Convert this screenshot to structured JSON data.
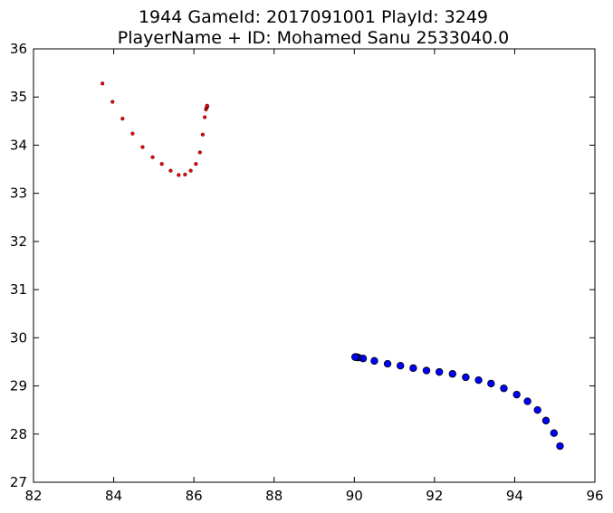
{
  "chart_data": {
    "type": "scatter",
    "title_line1": "1944 GameId: 2017091001 PlayId: 3249",
    "title_line2": "PlayerName + ID: Mohamed Sanu 2533040.0",
    "xlabel": "",
    "ylabel": "",
    "xlim": [
      82,
      96
    ],
    "ylim": [
      27,
      36
    ],
    "xticks": [
      82,
      84,
      86,
      88,
      90,
      92,
      94,
      96
    ],
    "yticks": [
      27,
      28,
      29,
      30,
      31,
      32,
      33,
      34,
      35,
      36
    ],
    "grid": false,
    "series": [
      {
        "color": "#ff0000",
        "marker_size": "small",
        "x": [
          83.72,
          83.97,
          84.22,
          84.47,
          84.72,
          84.97,
          85.2,
          85.42,
          85.62,
          85.78,
          85.92,
          86.05,
          86.15,
          86.22,
          86.27,
          86.3,
          86.32,
          86.33,
          86.33,
          86.33
        ],
        "y": [
          35.28,
          34.9,
          34.55,
          34.24,
          33.96,
          33.75,
          33.61,
          33.47,
          33.38,
          33.39,
          33.47,
          33.61,
          33.85,
          34.22,
          34.58,
          34.74,
          34.78,
          34.8,
          34.81,
          34.82
        ]
      },
      {
        "color": "#0000ff",
        "marker_size": "large",
        "x": [
          95.13,
          94.98,
          94.78,
          94.57,
          94.32,
          94.05,
          93.73,
          93.41,
          93.1,
          92.78,
          92.45,
          92.12,
          91.8,
          91.47,
          91.15,
          90.83,
          90.5,
          90.22,
          90.1,
          90.05,
          90.03,
          90.02
        ],
        "y": [
          27.75,
          28.02,
          28.28,
          28.5,
          28.68,
          28.82,
          28.95,
          29.05,
          29.12,
          29.18,
          29.25,
          29.29,
          29.32,
          29.37,
          29.42,
          29.46,
          29.52,
          29.57,
          29.59,
          29.6,
          29.6,
          29.6
        ]
      }
    ]
  }
}
